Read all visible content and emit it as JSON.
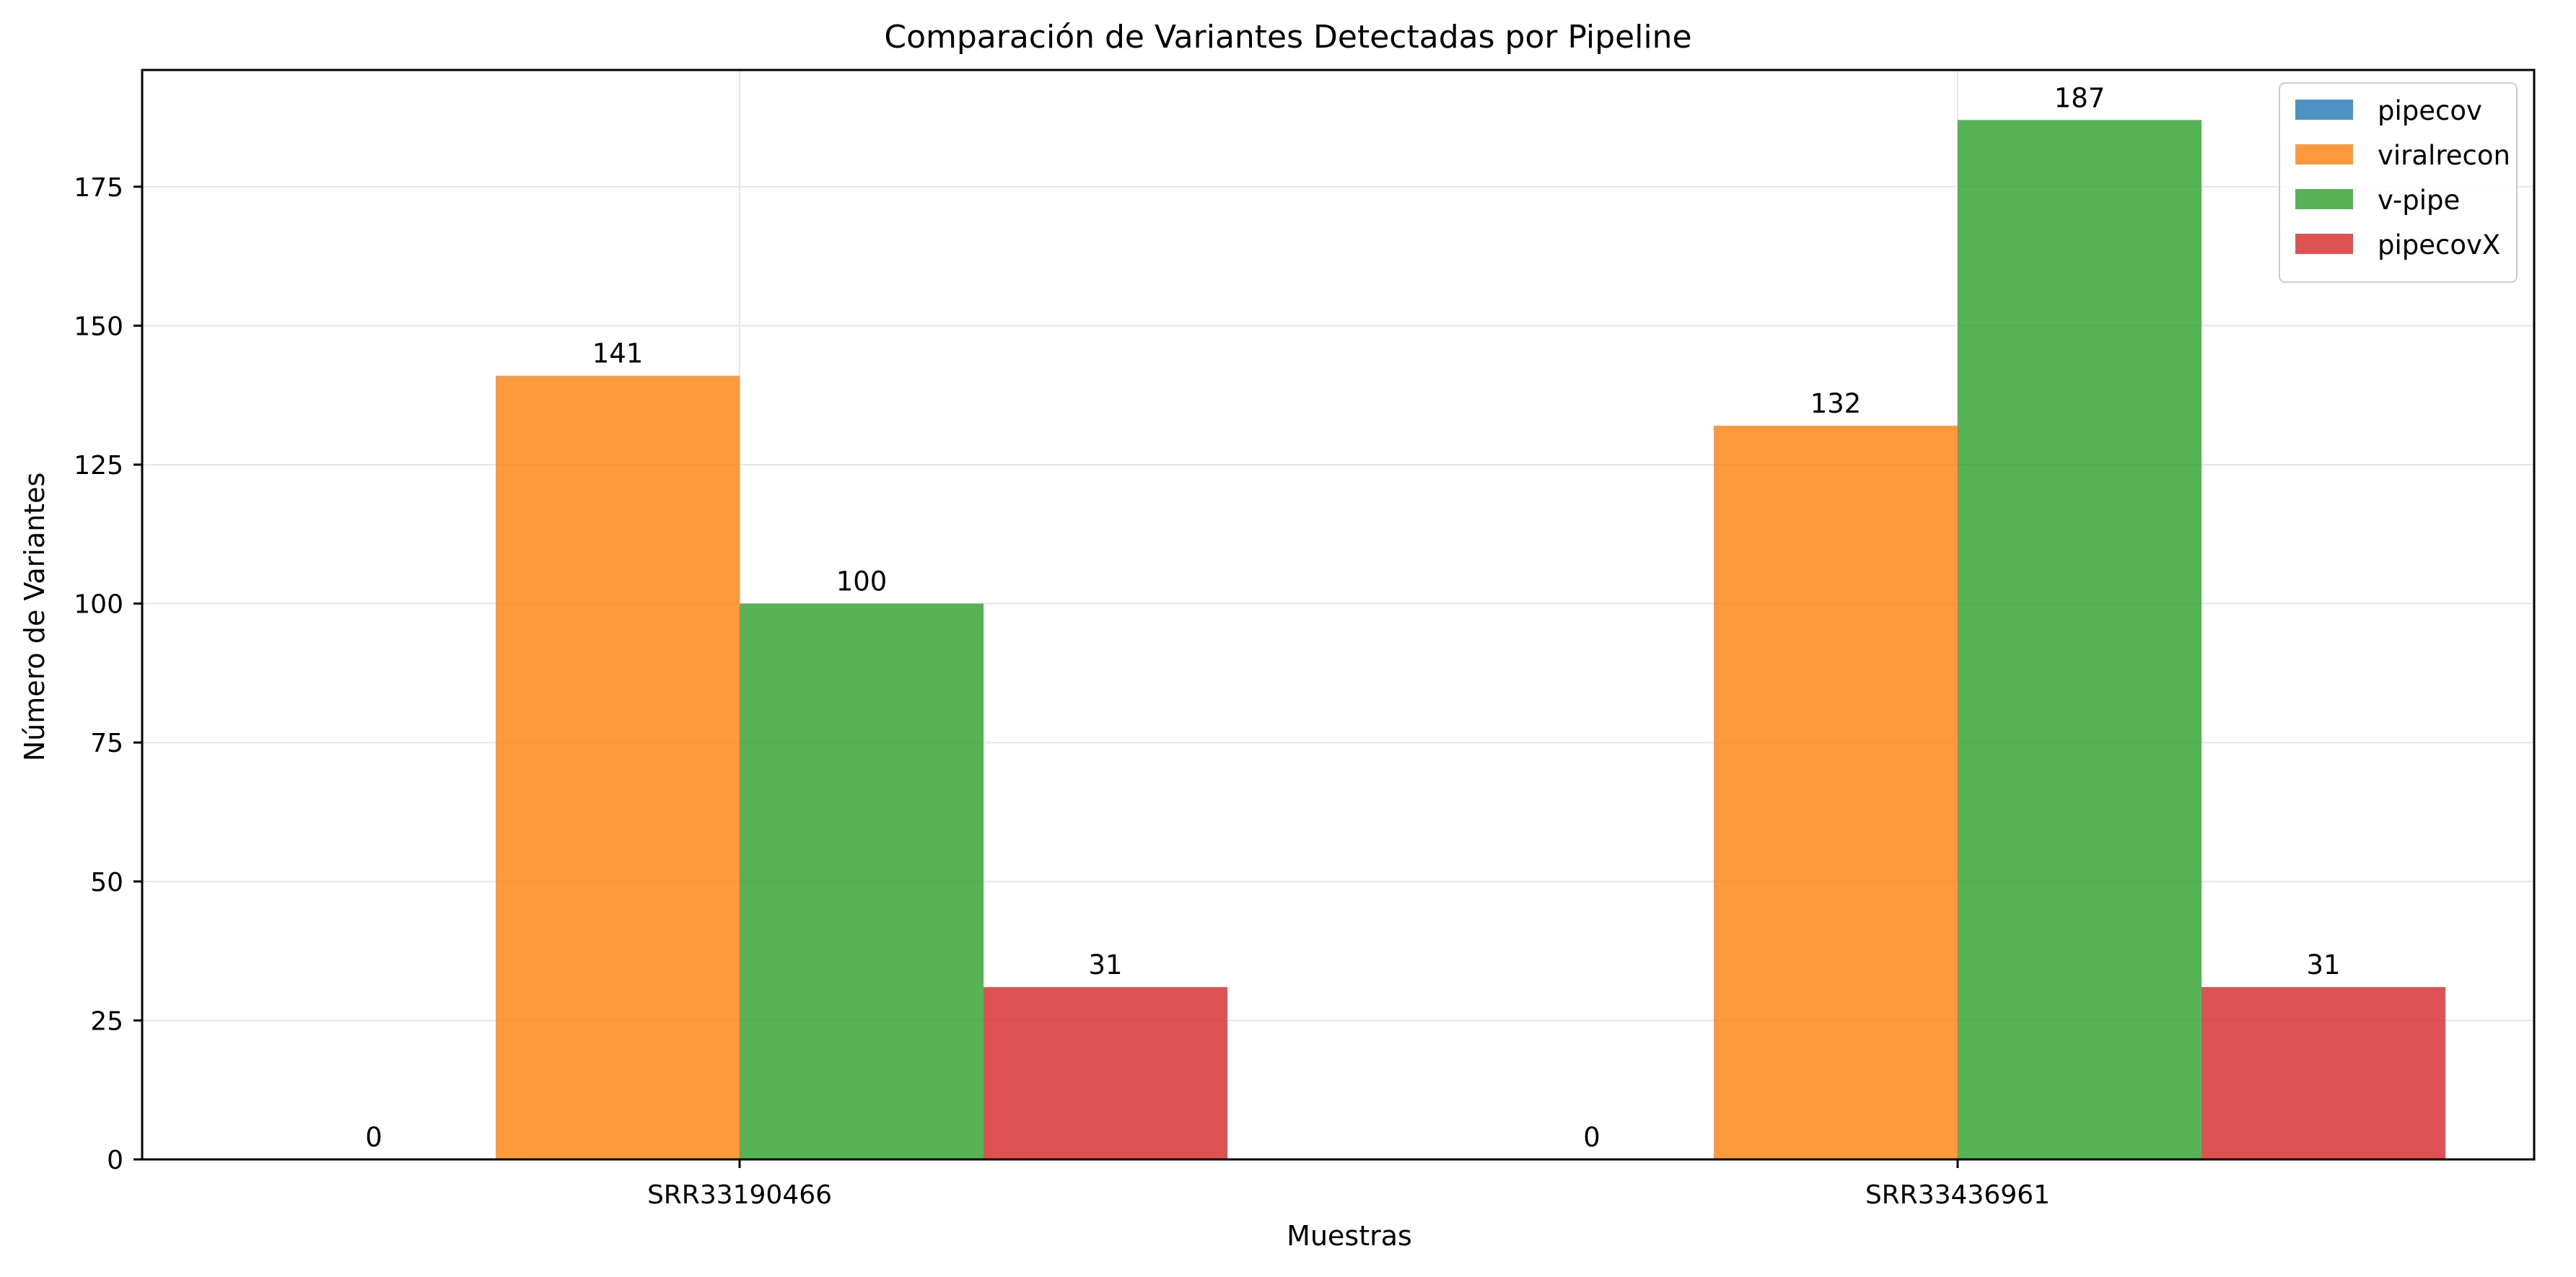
{
  "chart_data": {
    "type": "bar",
    "title": "Comparación de Variantes Detectadas por Pipeline",
    "xlabel": "Muestras",
    "ylabel": "Número de Variantes",
    "categories": [
      "SRR33190466",
      "SRR33436961"
    ],
    "series": [
      {
        "name": "pipecov",
        "values": [
          0,
          0
        ],
        "color": "#1f77b4"
      },
      {
        "name": "viralrecon",
        "values": [
          141,
          132
        ],
        "color": "#ff7f0e"
      },
      {
        "name": "v-pipe",
        "values": [
          100,
          187
        ],
        "color": "#2ca02c"
      },
      {
        "name": "pipecovX",
        "values": [
          31,
          31
        ],
        "color": "#d62728"
      }
    ],
    "ylim": [
      0,
      196
    ],
    "yticks": [
      0,
      25,
      50,
      75,
      100,
      125,
      150,
      175
    ],
    "grid": true,
    "legend_position": "top-right",
    "bar_opacity": 0.8
  }
}
